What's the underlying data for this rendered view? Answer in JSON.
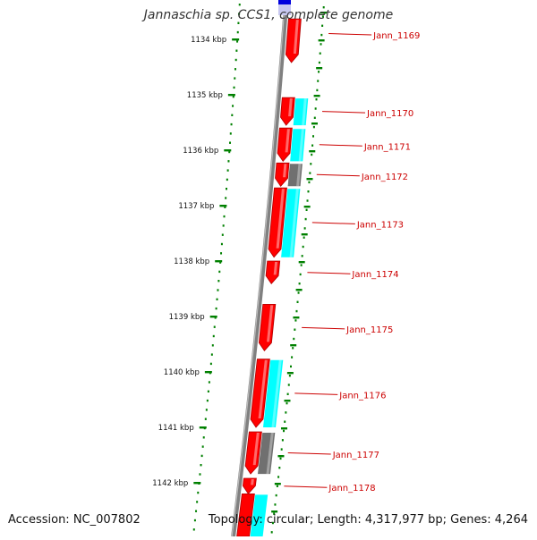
{
  "title": "Jannaschia sp. CCS1, complete genome",
  "accession": "Accession: NC_007802",
  "summary": "Topology: circular; Length: 4,317,977 bp; Genes: 4,264",
  "colors": {
    "forward_gene": "#ff0000",
    "forward_gene_dark": "#b00000",
    "cds_cyan": "#00ffff",
    "cds_gray": "#707070",
    "backbone": "#808080",
    "tick": "#008000",
    "label": "#cc0000",
    "partial_blue": "#0000dd"
  },
  "kbp_ticks": [
    {
      "kbp": 1134,
      "label": "1134 kbp"
    },
    {
      "kbp": 1135,
      "label": "1135 kbp"
    },
    {
      "kbp": 1136,
      "label": "1136 kbp"
    },
    {
      "kbp": 1137,
      "label": "1137 kbp"
    },
    {
      "kbp": 1138,
      "label": "1138 kbp"
    },
    {
      "kbp": 1139,
      "label": "1139 kbp"
    },
    {
      "kbp": 1140,
      "label": "1140 kbp"
    },
    {
      "kbp": 1141,
      "label": "1141 kbp"
    },
    {
      "kbp": 1142,
      "label": "1142 kbp"
    }
  ],
  "genes": [
    {
      "name": "Jann_1169",
      "start_kbp": 1133.63,
      "end_kbp": 1134.42,
      "feature": null
    },
    {
      "name": "Jann_1170",
      "start_kbp": 1135.05,
      "end_kbp": 1135.55,
      "feature": "cyan"
    },
    {
      "name": "Jann_1171",
      "start_kbp": 1135.6,
      "end_kbp": 1136.2,
      "feature": "cyan"
    },
    {
      "name": "Jann_1172",
      "start_kbp": 1136.23,
      "end_kbp": 1136.65,
      "feature": "gray"
    },
    {
      "name": "Jann_1173",
      "start_kbp": 1136.68,
      "end_kbp": 1137.93,
      "feature": "cyan"
    },
    {
      "name": "Jann_1174",
      "start_kbp": 1138.0,
      "end_kbp": 1138.41,
      "feature": null
    },
    {
      "name": "Jann_1175",
      "start_kbp": 1138.78,
      "end_kbp": 1139.62,
      "feature": null
    },
    {
      "name": "Jann_1176",
      "start_kbp": 1139.77,
      "end_kbp": 1141.0,
      "feature": "cyan"
    },
    {
      "name": "Jann_1177",
      "start_kbp": 1141.08,
      "end_kbp": 1141.84,
      "feature": "gray"
    },
    {
      "name": "Jann_1178",
      "start_kbp": 1141.92,
      "end_kbp": 1142.2,
      "feature": null
    }
  ],
  "partial_genes": [
    {
      "start_kbp": 1142.2,
      "end_kbp": 1143.0,
      "feature": "cyan"
    }
  ]
}
